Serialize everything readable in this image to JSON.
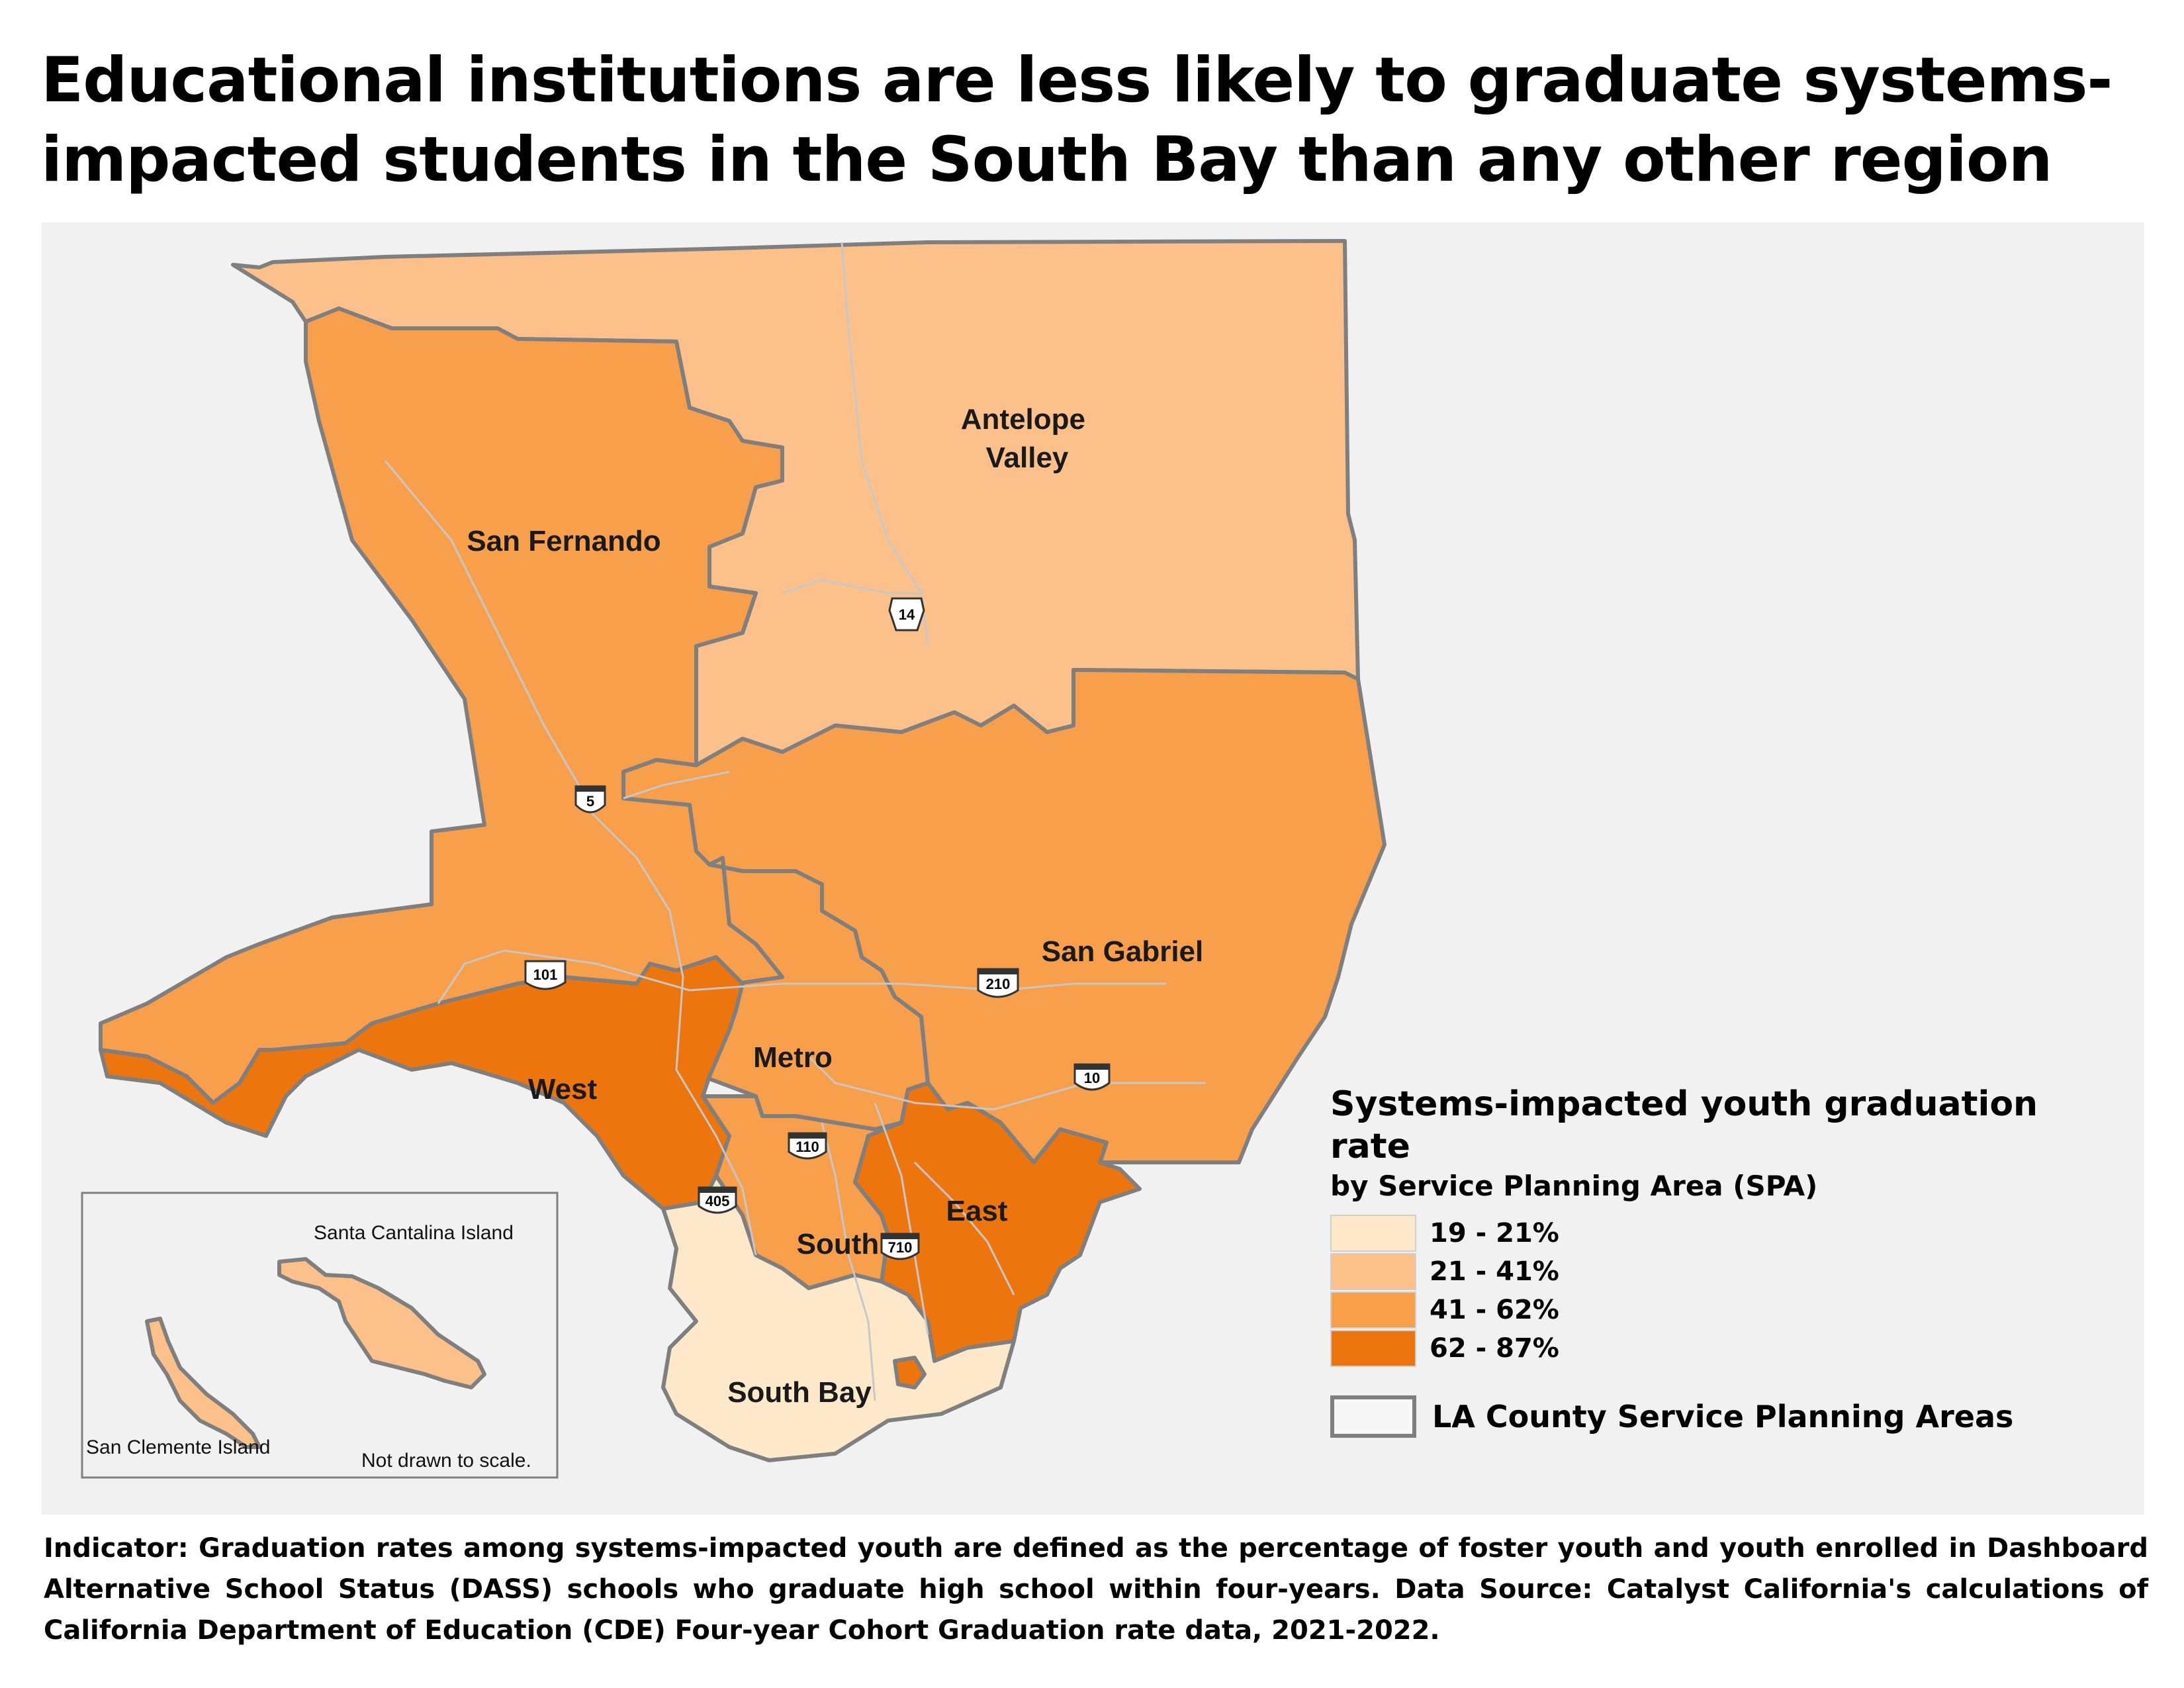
{
  "title": "Educational institutions are less likely to graduate systems-impacted students in the South Bay than any other region",
  "colors": {
    "bin_19_21": "#fde8ca",
    "bin_21_41": "#fcc08b",
    "bin_41_62": "#f89f4c",
    "bin_62_87": "#ec760d",
    "background": "#f1f1f1",
    "boundary": "#7f7f7f"
  },
  "regions": {
    "antelope_valley": "Antelope\nValley",
    "san_fernando": "San Fernando",
    "san_gabriel": "San Gabriel",
    "metro": "Metro",
    "west": "West",
    "south": "South",
    "east": "East",
    "south_bay": "South Bay"
  },
  "highways": {
    "h14": "14",
    "h5": "5",
    "h101": "101",
    "h210": "210",
    "h10": "10",
    "h110": "110",
    "h405": "405",
    "h710": "710"
  },
  "inset": {
    "catalina_label": "Santa Cantalina Island",
    "clemente_label": "San Clemente Island",
    "scale_note": "Not drawn to scale."
  },
  "legend": {
    "title": "Systems-impacted youth graduation rate",
    "subtitle": "by Service Planning Area (SPA)",
    "bins": [
      {
        "label": "19 - 21%",
        "color": "#fde8ca"
      },
      {
        "label": "21 - 41%",
        "color": "#fcc08b"
      },
      {
        "label": "41 - 62%",
        "color": "#f89f4c"
      },
      {
        "label": "62 - 87%",
        "color": "#ec760d"
      }
    ],
    "outline_label": "LA County Service Planning Areas"
  },
  "footnote": "Indicator: Graduation rates among systems-impacted youth are defined as the percentage of foster youth and youth enrolled in Dashboard Alternative School Status (DASS) schools who graduate high school within four-years. Data Source: Catalyst California's calculations of California Department of Education (CDE) Four-year Cohort Graduation rate data, 2021-2022."
}
